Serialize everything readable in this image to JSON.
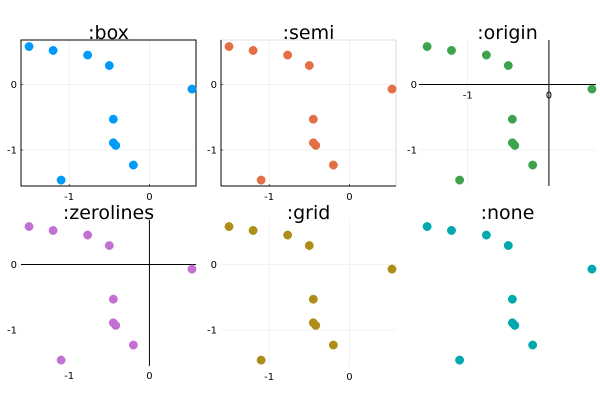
{
  "chart_data": {
    "type": "scatter",
    "x": [
      -1.5,
      -1.2,
      -0.77,
      -0.5,
      0.53,
      -0.45,
      -0.45,
      -0.42,
      -0.2,
      -1.1
    ],
    "y": [
      0.58,
      0.52,
      0.45,
      0.29,
      -0.07,
      -0.53,
      -0.89,
      -0.93,
      -1.23,
      -1.46
    ],
    "xlim": [
      -1.6,
      0.58
    ],
    "ylim": [
      -1.55,
      0.68
    ],
    "xticks": [
      {
        "value": -1,
        "label": "-1"
      },
      {
        "value": 0,
        "label": "0"
      }
    ],
    "yticks": [
      {
        "value": -1,
        "label": "-1"
      },
      {
        "value": 0,
        "label": "0"
      }
    ],
    "subplots": [
      {
        "title": ":box",
        "color": "#009AF9",
        "framestyle": "box",
        "grid": true,
        "ticks": true,
        "axis_lines": "box"
      },
      {
        "title": ":semi",
        "color": "#E26F46",
        "framestyle": "semi",
        "grid": true,
        "ticks": true,
        "axis_lines": "semi"
      },
      {
        "title": ":origin",
        "color": "#3DA44D",
        "framestyle": "origin",
        "grid": true,
        "ticks": true,
        "axis_lines": "origin"
      },
      {
        "title": ":zerolines",
        "color": "#C271D2",
        "framestyle": "zerolines",
        "grid": false,
        "ticks": true,
        "axis_lines": "zerolines"
      },
      {
        "title": ":grid",
        "color": "#AC8E18",
        "framestyle": "grid",
        "grid": true,
        "ticks": true,
        "axis_lines": "none"
      },
      {
        "title": ":none",
        "color": "#00A9AD",
        "framestyle": "none",
        "grid": false,
        "ticks": false,
        "axis_lines": "none"
      }
    ]
  }
}
